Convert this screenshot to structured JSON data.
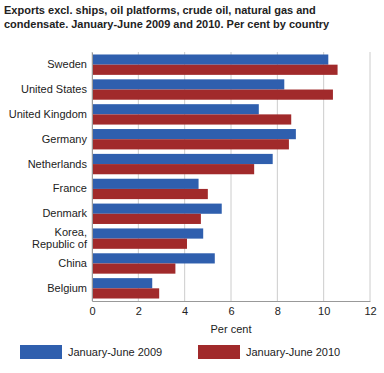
{
  "chart_data": {
    "type": "bar",
    "orientation": "horizontal",
    "title": "Exports excl. ships, oil platforms, crude oil, natural gas and condensate. January-June 2009 and 2010. Per cent by country",
    "categories": [
      "Sweden",
      "United States",
      "United Kingdom",
      "Germany",
      "Netherlands",
      "France",
      "Denmark",
      "Korea, Republic of",
      "China",
      "Belgium"
    ],
    "series": [
      {
        "name": "January-June 2009",
        "color": "#2f5fae",
        "values": [
          10.2,
          8.3,
          7.2,
          8.8,
          7.8,
          4.6,
          5.6,
          4.8,
          5.3,
          2.6
        ]
      },
      {
        "name": "January-June 2010",
        "color": "#a12a2b",
        "values": [
          10.6,
          10.4,
          8.6,
          8.5,
          7.0,
          5.0,
          4.7,
          4.1,
          3.6,
          2.9
        ]
      }
    ],
    "xlabel": "Per cent",
    "xlim": [
      0,
      12
    ],
    "xticks": [
      0,
      2,
      4,
      6,
      8,
      10,
      12
    ],
    "grid": true,
    "legend": "bottom"
  }
}
